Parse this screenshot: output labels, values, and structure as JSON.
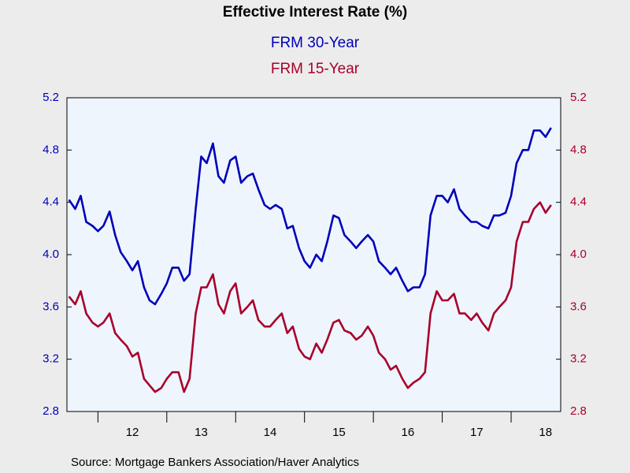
{
  "chart_data": {
    "type": "line",
    "title": "Effective Interest Rate (%)",
    "source": "Source:  Mortgage Bankers Association/Haver Analytics",
    "x": [
      2011.58,
      2011.67,
      2011.75,
      2011.83,
      2011.92,
      2012.0,
      2012.08,
      2012.17,
      2012.25,
      2012.33,
      2012.42,
      2012.5,
      2012.58,
      2012.67,
      2012.75,
      2012.83,
      2012.92,
      2013.0,
      2013.08,
      2013.17,
      2013.25,
      2013.33,
      2013.42,
      2013.5,
      2013.58,
      2013.67,
      2013.75,
      2013.83,
      2013.92,
      2014.0,
      2014.08,
      2014.17,
      2014.25,
      2014.33,
      2014.42,
      2014.5,
      2014.58,
      2014.67,
      2014.75,
      2014.83,
      2014.92,
      2015.0,
      2015.08,
      2015.17,
      2015.25,
      2015.33,
      2015.42,
      2015.5,
      2015.58,
      2015.67,
      2015.75,
      2015.83,
      2015.92,
      2016.0,
      2016.08,
      2016.17,
      2016.25,
      2016.33,
      2016.42,
      2016.5,
      2016.58,
      2016.67,
      2016.75,
      2016.83,
      2016.92,
      2017.0,
      2017.08,
      2017.17,
      2017.25,
      2017.33,
      2017.42,
      2017.5,
      2017.58,
      2017.67,
      2017.75,
      2017.83,
      2017.92,
      2018.0,
      2018.08,
      2018.17,
      2018.25,
      2018.33,
      2018.42,
      2018.5,
      2018.58
    ],
    "series": [
      {
        "name": "FRM 30-Year",
        "color": "#0000b8",
        "axis": "y",
        "values": [
          4.42,
          4.35,
          4.45,
          4.25,
          4.22,
          4.18,
          4.22,
          4.33,
          4.15,
          4.02,
          3.95,
          3.88,
          3.95,
          3.75,
          3.65,
          3.62,
          3.7,
          3.78,
          3.9,
          3.9,
          3.8,
          3.85,
          4.35,
          4.75,
          4.7,
          4.85,
          4.6,
          4.55,
          4.72,
          4.75,
          4.55,
          4.6,
          4.62,
          4.5,
          4.38,
          4.35,
          4.38,
          4.35,
          4.2,
          4.22,
          4.05,
          3.95,
          3.9,
          4.0,
          3.95,
          4.1,
          4.3,
          4.28,
          4.15,
          4.1,
          4.05,
          4.1,
          4.15,
          4.1,
          3.95,
          3.9,
          3.85,
          3.9,
          3.8,
          3.72,
          3.75,
          3.75,
          3.85,
          4.3,
          4.45,
          4.45,
          4.4,
          4.5,
          4.35,
          4.3,
          4.25,
          4.25,
          4.22,
          4.2,
          4.3,
          4.3,
          4.32,
          4.45,
          4.7,
          4.8,
          4.8,
          4.95,
          4.95,
          4.9,
          4.97
        ]
      },
      {
        "name": "FRM 15-Year",
        "color": "#a8002a",
        "axis": "y2",
        "values": [
          3.68,
          3.62,
          3.72,
          3.55,
          3.48,
          3.45,
          3.48,
          3.55,
          3.4,
          3.35,
          3.3,
          3.22,
          3.25,
          3.05,
          3.0,
          2.95,
          2.98,
          3.05,
          3.1,
          3.1,
          2.95,
          3.05,
          3.55,
          3.75,
          3.75,
          3.85,
          3.62,
          3.55,
          3.72,
          3.78,
          3.55,
          3.6,
          3.65,
          3.5,
          3.45,
          3.45,
          3.5,
          3.55,
          3.4,
          3.45,
          3.28,
          3.22,
          3.2,
          3.32,
          3.25,
          3.35,
          3.48,
          3.5,
          3.42,
          3.4,
          3.35,
          3.38,
          3.45,
          3.38,
          3.25,
          3.2,
          3.12,
          3.15,
          3.05,
          2.98,
          3.02,
          3.05,
          3.1,
          3.55,
          3.72,
          3.65,
          3.65,
          3.7,
          3.55,
          3.55,
          3.5,
          3.55,
          3.48,
          3.42,
          3.55,
          3.6,
          3.65,
          3.75,
          4.1,
          4.25,
          4.25,
          4.35,
          4.4,
          4.32,
          4.38
        ]
      }
    ],
    "xlim": [
      2011.55,
      2018.72
    ],
    "xticks": [
      {
        "value": 2012,
        "label": "12"
      },
      {
        "value": 2013,
        "label": "13"
      },
      {
        "value": 2014,
        "label": "14"
      },
      {
        "value": 2015,
        "label": "15"
      },
      {
        "value": 2016,
        "label": "16"
      },
      {
        "value": 2017,
        "label": "17"
      },
      {
        "value": 2018,
        "label": "18"
      }
    ],
    "ylim": [
      2.8,
      5.2
    ],
    "yticks": [
      {
        "value": 2.8,
        "label": "2.8"
      },
      {
        "value": 3.2,
        "label": "3.2"
      },
      {
        "value": 3.6,
        "label": "3.6"
      },
      {
        "value": 4.0,
        "label": "4.0"
      },
      {
        "value": 4.4,
        "label": "4.4"
      },
      {
        "value": 4.8,
        "label": "4.8"
      },
      {
        "value": 5.2,
        "label": "5.2"
      }
    ],
    "y2lim": [
      2.8,
      5.2
    ],
    "y2ticks": [
      {
        "value": 2.8,
        "label": "2.8"
      },
      {
        "value": 3.2,
        "label": "3.2"
      },
      {
        "value": 3.6,
        "label": "3.6"
      },
      {
        "value": 4.0,
        "label": "4.0"
      },
      {
        "value": 4.4,
        "label": "4.4"
      },
      {
        "value": 4.8,
        "label": "4.8"
      },
      {
        "value": 5.2,
        "label": "5.2"
      }
    ],
    "grid": false
  }
}
